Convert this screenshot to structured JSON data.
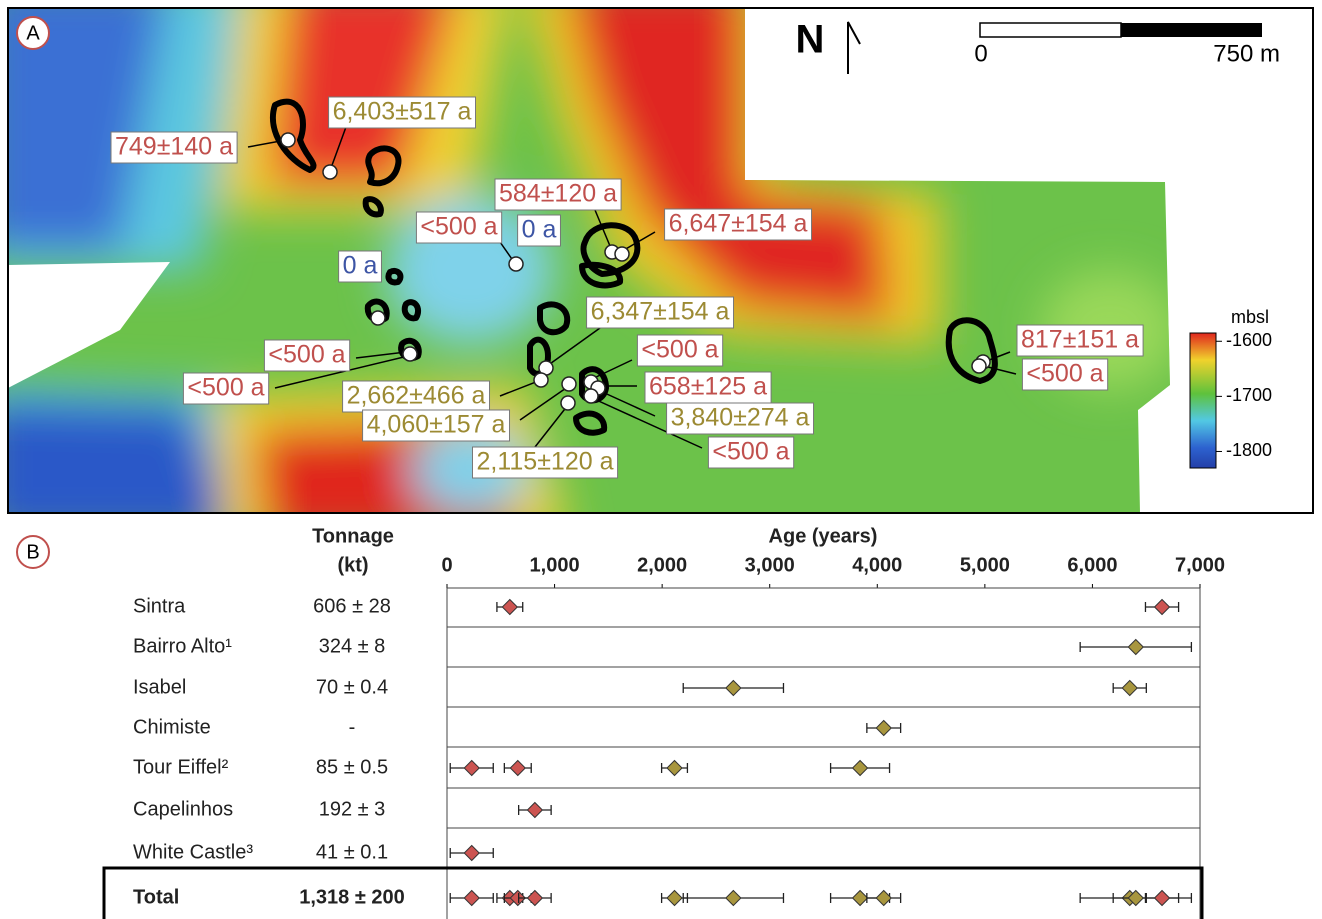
{
  "map": {
    "panel_label": "A",
    "north": "N",
    "scale_bar": [
      "0",
      "750 m"
    ],
    "colorbar": {
      "title": "mbsl",
      "lim": [
        -1830,
        -1585
      ],
      "ticks": [
        -1600,
        -1700,
        -1800
      ]
    },
    "labels": [
      {
        "text": "6,403±517 a",
        "color": "#9c8a33"
      },
      {
        "text": "749±140 a",
        "color": "#c0504d"
      },
      {
        "text": "584±120 a",
        "color": "#c0504d"
      },
      {
        "text": "6,647±154 a",
        "color": "#c0504d"
      },
      {
        "text": "<500 a",
        "color": "#c0504d"
      },
      {
        "text": "0 a",
        "color": "#3d55a5"
      },
      {
        "text": "0 a",
        "color": "#3d55a5"
      },
      {
        "text": "6,347±154 a",
        "color": "#9c8a33"
      },
      {
        "text": "<500 a",
        "color": "#c0504d"
      },
      {
        "text": "817±151 a",
        "color": "#c0504d"
      },
      {
        "text": "<500 a",
        "color": "#c0504d"
      },
      {
        "text": "<500 a",
        "color": "#c0504d"
      },
      {
        "text": "658±125 a",
        "color": "#c0504d"
      },
      {
        "text": "<500 a",
        "color": "#c0504d"
      },
      {
        "text": "2,662±466 a",
        "color": "#9c8a33"
      },
      {
        "text": "3,840±274 a",
        "color": "#9c8a33"
      },
      {
        "text": "4,060±157 a",
        "color": "#9c8a33"
      },
      {
        "text": "<500 a",
        "color": "#c0504d"
      },
      {
        "text": "2,115±120 a",
        "color": "#9c8a33"
      }
    ]
  },
  "chart_data": {
    "type": "dot",
    "panel_label": "B",
    "x_label": "Age (years)",
    "column_title": [
      "Tonnage",
      "(kt)"
    ],
    "xlim": [
      0,
      7000
    ],
    "xticks": [
      0,
      {
        "value": 1000,
        "label": "1,000"
      },
      {
        "value": 2000,
        "label": "2,000"
      },
      {
        "value": 3000,
        "label": "3,000"
      },
      {
        "value": 4000,
        "label": "4,000"
      },
      {
        "value": 5000,
        "label": "5,000"
      },
      {
        "value": 6000,
        "label": "6,000"
      },
      {
        "value": 7000,
        "label": "7,000"
      }
    ],
    "rows": [
      {
        "name": "Sintra",
        "tonnage": "606 ± 28",
        "points": [
          {
            "value": 584,
            "error": 120,
            "color": "#cc5451"
          },
          {
            "value": 6647,
            "error": 154,
            "color": "#cc5451"
          }
        ]
      },
      {
        "name": "Bairro Alto¹",
        "tonnage": "324 ± 8",
        "points": [
          {
            "value": 6403,
            "error": 517,
            "color": "#a8963e"
          }
        ]
      },
      {
        "name": "Isabel",
        "tonnage": "70 ± 0.4",
        "points": [
          {
            "value": 2662,
            "error": 466,
            "color": "#a8963e"
          },
          {
            "value": 6347,
            "error": 154,
            "color": "#a8963e"
          }
        ]
      },
      {
        "name": "Chimiste",
        "tonnage": "-",
        "points": [
          {
            "value": 4060,
            "error": 157,
            "color": "#a8963e"
          }
        ]
      },
      {
        "name": "Tour Eiffel²",
        "tonnage": "85 ± 0.5",
        "points": [
          {
            "value": 230,
            "error": 200,
            "color": "#cc5451"
          },
          {
            "value": 658,
            "error": 125,
            "color": "#cc5451"
          },
          {
            "value": 2115,
            "error": 120,
            "color": "#a8963e"
          },
          {
            "value": 3840,
            "error": 274,
            "color": "#a8963e"
          }
        ]
      },
      {
        "name": "Capelinhos",
        "tonnage": "192 ± 3",
        "points": [
          {
            "value": 817,
            "error": 151,
            "color": "#cc5451"
          }
        ]
      },
      {
        "name": "White Castle³",
        "tonnage": "41 ± 0.1",
        "points": [
          {
            "value": 230,
            "error": 200,
            "color": "#cc5451"
          }
        ]
      },
      {
        "name": "Total",
        "tonnage": "1,318 ± 200",
        "points": [
          {
            "value": 230,
            "error": 200,
            "color": "#cc5451"
          },
          {
            "value": 584,
            "error": 120,
            "color": "#cc5451"
          },
          {
            "value": 658,
            "error": 125,
            "color": "#cc5451"
          },
          {
            "value": 817,
            "error": 151,
            "color": "#cc5451"
          },
          {
            "value": 2115,
            "error": 120,
            "color": "#a8963e"
          },
          {
            "value": 2662,
            "error": 466,
            "color": "#a8963e"
          },
          {
            "value": 3840,
            "error": 274,
            "color": "#a8963e"
          },
          {
            "value": 4060,
            "error": 157,
            "color": "#a8963e"
          },
          {
            "value": 6347,
            "error": 154,
            "color": "#a8963e"
          },
          {
            "value": 6403,
            "error": 517,
            "color": "#a8963e"
          },
          {
            "value": 6647,
            "error": 154,
            "color": "#cc5451"
          }
        ]
      }
    ]
  }
}
